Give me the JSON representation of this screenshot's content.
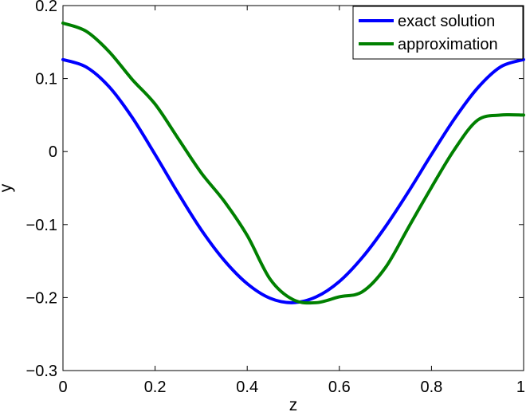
{
  "chart_data": {
    "type": "line",
    "title": "",
    "xlabel": "z",
    "ylabel": "y",
    "xlim": [
      0,
      1
    ],
    "ylim": [
      -0.3,
      0.2
    ],
    "xticks": [
      0,
      0.2,
      0.4,
      0.6,
      0.8,
      1
    ],
    "xtick_labels": [
      "0",
      "0.2",
      "0.4",
      "0.6",
      "0.8",
      "1"
    ],
    "yticks": [
      -0.3,
      -0.2,
      -0.1,
      0,
      0.1,
      0.2
    ],
    "ytick_labels": [
      "−0.3",
      "−0.2",
      "−0.1",
      "0",
      "0.1",
      "0.2"
    ],
    "grid": false,
    "legend_position": "top-right",
    "series": [
      {
        "name": "exact solution",
        "color": "#0000ff",
        "x": [
          0,
          0.05,
          0.1,
          0.15,
          0.2,
          0.25,
          0.3,
          0.35,
          0.4,
          0.45,
          0.5,
          0.55,
          0.6,
          0.65,
          0.7,
          0.75,
          0.8,
          0.85,
          0.9,
          0.95,
          1
        ],
        "y": [
          0.126,
          0.116,
          0.089,
          0.047,
          -0.004,
          -0.057,
          -0.107,
          -0.149,
          -0.181,
          -0.201,
          -0.207,
          -0.199,
          -0.178,
          -0.145,
          -0.103,
          -0.055,
          -0.004,
          0.045,
          0.087,
          0.116,
          0.126
        ]
      },
      {
        "name": "approximation",
        "color": "#008000",
        "x": [
          0,
          0.05,
          0.1,
          0.15,
          0.2,
          0.25,
          0.3,
          0.35,
          0.4,
          0.45,
          0.5,
          0.55,
          0.6,
          0.65,
          0.7,
          0.75,
          0.8,
          0.85,
          0.9,
          0.95,
          1
        ],
        "y": [
          0.176,
          0.165,
          0.137,
          0.099,
          0.065,
          0.018,
          -0.029,
          -0.068,
          -0.115,
          -0.175,
          -0.203,
          -0.207,
          -0.199,
          -0.192,
          -0.159,
          -0.104,
          -0.049,
          0.003,
          0.043,
          0.05,
          0.05
        ]
      }
    ]
  }
}
